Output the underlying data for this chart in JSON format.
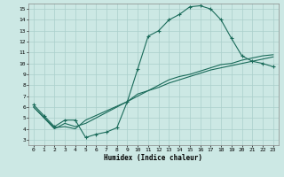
{
  "xlabel": "Humidex (Indice chaleur)",
  "bg_color": "#cce8e4",
  "grid_color": "#aacfcb",
  "line_color": "#1a6b5a",
  "xlim": [
    -0.5,
    23.5
  ],
  "ylim": [
    2.5,
    15.5
  ],
  "xticks": [
    0,
    1,
    2,
    3,
    4,
    5,
    6,
    7,
    8,
    9,
    10,
    11,
    12,
    13,
    14,
    15,
    16,
    17,
    18,
    19,
    20,
    21,
    22,
    23
  ],
  "yticks": [
    3,
    4,
    5,
    6,
    7,
    8,
    9,
    10,
    11,
    12,
    13,
    14,
    15
  ],
  "line1_x": [
    0,
    1,
    2,
    3,
    4,
    5,
    6,
    7,
    8,
    9,
    10,
    11,
    12,
    13,
    14,
    15,
    16,
    17,
    18,
    19,
    20,
    21,
    22,
    23
  ],
  "line1_y": [
    6.2,
    5.2,
    4.2,
    4.8,
    4.8,
    3.2,
    3.5,
    3.7,
    4.1,
    6.5,
    9.5,
    12.5,
    13.0,
    14.0,
    14.5,
    15.2,
    15.3,
    15.0,
    14.0,
    12.3,
    10.7,
    10.2,
    10.0,
    9.7
  ],
  "line2_x": [
    0,
    2,
    3,
    4,
    5,
    9,
    10,
    11,
    12,
    13,
    14,
    15,
    16,
    17,
    18,
    19,
    20,
    21,
    22,
    23
  ],
  "line2_y": [
    6.0,
    4.1,
    4.2,
    4.0,
    4.8,
    6.5,
    7.2,
    7.5,
    8.0,
    8.5,
    8.8,
    9.0,
    9.3,
    9.6,
    9.9,
    10.0,
    10.3,
    10.5,
    10.7,
    10.8
  ],
  "line3_x": [
    0,
    1,
    2,
    3,
    4,
    5,
    6,
    7,
    8,
    9,
    10,
    11,
    12,
    13,
    14,
    15,
    16,
    17,
    18,
    19,
    20,
    21,
    22,
    23
  ],
  "line3_y": [
    6.0,
    5.0,
    4.0,
    4.5,
    4.2,
    4.5,
    5.0,
    5.5,
    6.0,
    6.5,
    7.0,
    7.5,
    7.8,
    8.2,
    8.5,
    8.8,
    9.1,
    9.4,
    9.6,
    9.8,
    10.0,
    10.2,
    10.4,
    10.6
  ]
}
